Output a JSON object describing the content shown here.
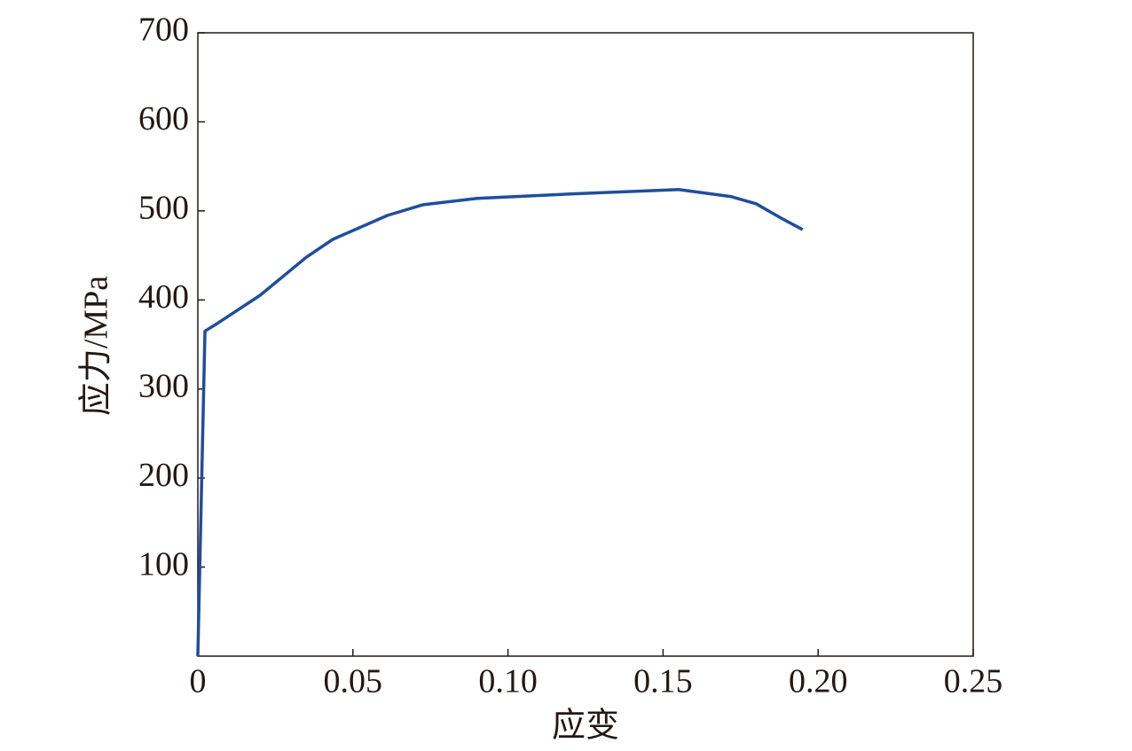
{
  "chart_data": {
    "type": "line",
    "xlabel": "应变",
    "ylabel": "应力/MPa",
    "x": [
      0,
      0.0023,
      0.006,
      0.02,
      0.035,
      0.0435,
      0.0612,
      0.0727,
      0.09,
      0.12,
      0.155,
      0.172,
      0.18,
      0.188,
      0.195
    ],
    "series": [
      {
        "color": "#1f4e9c",
        "values": [
          0,
          365,
          373,
          405,
          448,
          468,
          495,
          507,
          514,
          519,
          524,
          516,
          508,
          492,
          479
        ]
      }
    ],
    "xlim": [
      0,
      0.25
    ],
    "ylim": [
      0,
      700
    ],
    "xticks": [
      0,
      0.05,
      {
        "value": 0.1,
        "label": "0.10"
      },
      0.15,
      {
        "value": 0.2,
        "label": "0.20"
      },
      0.25
    ],
    "yticks": [
      100,
      200,
      300,
      400,
      500,
      600,
      700
    ],
    "grid": false
  }
}
